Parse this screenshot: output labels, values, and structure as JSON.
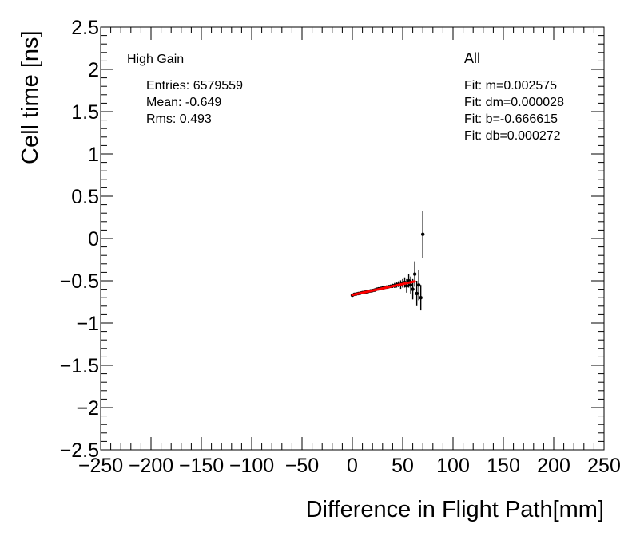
{
  "chart_data": {
    "type": "scatter",
    "title": "",
    "xlabel": "Difference in Flight Path[mm]",
    "ylabel": "Cell time [ns]",
    "xlim": [
      -250,
      250
    ],
    "ylim": [
      -2.5,
      2.5
    ],
    "xticks": [
      "−250",
      "−200",
      "−150",
      "−100",
      "−50",
      "0",
      "50",
      "100",
      "150",
      "200",
      "250"
    ],
    "yticks": [
      "−2.5",
      "−2",
      "−1.5",
      "−1",
      "−0.5",
      "0",
      "0.5",
      "1",
      "1.5",
      "2",
      "2.5"
    ],
    "xtick_values": [
      -250,
      -200,
      -150,
      -100,
      -50,
      0,
      50,
      100,
      150,
      200,
      250
    ],
    "ytick_values": [
      -2.5,
      -2,
      -1.5,
      -1,
      -0.5,
      0,
      0.5,
      1,
      1.5,
      2,
      2.5
    ],
    "grid": false,
    "legend": "none",
    "annotations": {
      "gain": "High Gain",
      "entries": "Entries: 6579559",
      "mean": "Mean: -0.649",
      "rms": "Rms: 0.493",
      "selection": "All",
      "fit_m": "Fit: m=0.002575",
      "fit_dm": "Fit: dm=0.000028",
      "fit_b": "Fit: b=-0.666615",
      "fit_db": "Fit: db=0.000272"
    },
    "series": [
      {
        "x": [
          0,
          2,
          4,
          6,
          8,
          10,
          12,
          14,
          16,
          18,
          20,
          22,
          24,
          26,
          28,
          30,
          32,
          34,
          36,
          38,
          40,
          42,
          44,
          46,
          48,
          50,
          52,
          54,
          56,
          58,
          60,
          62,
          64,
          66,
          68,
          70
        ],
        "y": [
          -0.67,
          -0.66,
          -0.655,
          -0.65,
          -0.645,
          -0.64,
          -0.635,
          -0.63,
          -0.625,
          -0.62,
          -0.615,
          -0.61,
          -0.6,
          -0.595,
          -0.59,
          -0.585,
          -0.58,
          -0.575,
          -0.57,
          -0.565,
          -0.56,
          -0.555,
          -0.55,
          -0.54,
          -0.545,
          -0.53,
          -0.52,
          -0.56,
          -0.5,
          -0.55,
          -0.6,
          -0.42,
          -0.65,
          -0.55,
          -0.7,
          0.05
        ],
        "yerr": [
          0.01,
          0.01,
          0.01,
          0.01,
          0.01,
          0.01,
          0.01,
          0.01,
          0.01,
          0.01,
          0.01,
          0.01,
          0.01,
          0.01,
          0.015,
          0.015,
          0.015,
          0.02,
          0.02,
          0.02,
          0.025,
          0.03,
          0.03,
          0.035,
          0.05,
          0.05,
          0.06,
          0.08,
          0.08,
          0.1,
          0.12,
          0.15,
          0.15,
          0.18,
          0.15,
          0.28
        ]
      }
    ],
    "fit_line": {
      "m": 0.002575,
      "b": -0.666615,
      "x_range": [
        0,
        62
      ],
      "color": "#ff0000"
    }
  }
}
